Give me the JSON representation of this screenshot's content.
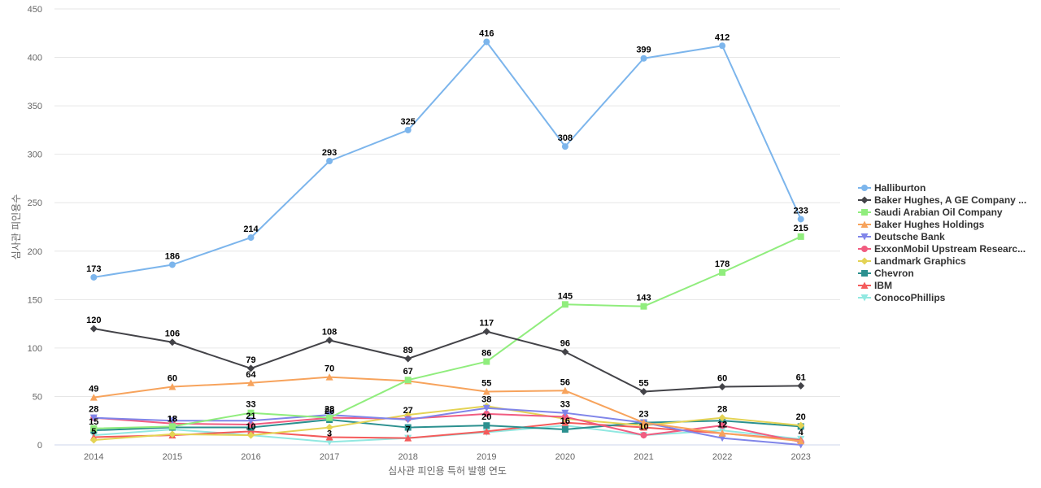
{
  "chart_data": {
    "type": "line",
    "title": "",
    "xlabel": "심사관 피인용 특허 발행 연도",
    "ylabel": "심사관 피인용수",
    "ylim": [
      0,
      450
    ],
    "yticks": [
      0,
      50,
      100,
      150,
      200,
      250,
      300,
      350,
      400,
      450
    ],
    "grid": true,
    "legend_position": "right",
    "categories": [
      "2014",
      "2015",
      "2016",
      "2017",
      "2018",
      "2019",
      "2020",
      "2021",
      "2022",
      "2023"
    ],
    "series": [
      {
        "name": "Halliburton",
        "color": "#7cb5ec",
        "marker": "circle",
        "values": [
          173,
          186,
          214,
          293,
          325,
          416,
          308,
          399,
          412,
          233
        ],
        "show_labels": true
      },
      {
        "name": "Baker Hughes, A GE Company ...",
        "color": "#434348",
        "marker": "diamond",
        "values": [
          120,
          106,
          79,
          108,
          89,
          117,
          96,
          55,
          60,
          61
        ],
        "show_labels": true
      },
      {
        "name": "Saudi Arabian Oil Company",
        "color": "#90ed7d",
        "marker": "square",
        "values": [
          17,
          19,
          33,
          28,
          67,
          86,
          145,
          143,
          178,
          215
        ],
        "show_labels": [
          false,
          false,
          true,
          true,
          true,
          true,
          true,
          true,
          true,
          true
        ]
      },
      {
        "name": "Baker Hughes Holdings",
        "color": "#f7a35c",
        "marker": "triangle",
        "values": [
          49,
          60,
          64,
          70,
          66,
          55,
          56,
          23,
          12,
          4
        ],
        "show_labels": [
          true,
          true,
          true,
          true,
          false,
          true,
          true,
          true,
          true,
          true
        ]
      },
      {
        "name": "Deutsche Bank",
        "color": "#8085e9",
        "marker": "triangle-down",
        "values": [
          28,
          25,
          25,
          31,
          26,
          38,
          33,
          23,
          7,
          0
        ],
        "show_labels": false
      },
      {
        "name": "ExxonMobil Upstream Researc...",
        "color": "#f15c80",
        "marker": "circle",
        "values": [
          28,
          22,
          21,
          28,
          27,
          32,
          29,
          10,
          20,
          3
        ],
        "show_labels": false
      },
      {
        "name": "Landmark Graphics",
        "color": "#e4d354",
        "marker": "diamond",
        "values": [
          5,
          11,
          10,
          18,
          31,
          40,
          27,
          20,
          28,
          20
        ],
        "show_labels": false
      },
      {
        "name": "Chevron",
        "color": "#2b908f",
        "marker": "square",
        "values": [
          15,
          18,
          18,
          26,
          18,
          20,
          16,
          23,
          25,
          19
        ],
        "show_labels": [
          true,
          true,
          false,
          true,
          false,
          false,
          false,
          false,
          false,
          false
        ]
      },
      {
        "name": "IBM",
        "color": "#f45b5b",
        "marker": "triangle",
        "values": [
          8,
          10,
          14,
          8,
          7,
          14,
          23,
          18,
          12,
          5
        ],
        "show_labels": false
      },
      {
        "name": "ConocoPhillips",
        "color": "#91e8e1",
        "marker": "triangle-down",
        "values": [
          10,
          16,
          10,
          3,
          7,
          13,
          20,
          10,
          15,
          6
        ],
        "show_labels": false
      }
    ],
    "extra_labels": [
      {
        "category": "2014",
        "text": "28",
        "at_value": 28
      },
      {
        "category": "2014",
        "text": "5",
        "at_value": 5
      },
      {
        "category": "2015",
        "text": "18",
        "at_value": 18
      },
      {
        "category": "2016",
        "text": "21",
        "at_value": 21
      },
      {
        "category": "2016",
        "text": "10",
        "at_value": 10
      },
      {
        "category": "2017",
        "text": "3",
        "at_value": 3
      },
      {
        "category": "2018",
        "text": "27",
        "at_value": 27
      },
      {
        "category": "2018",
        "text": "7",
        "at_value": 7
      },
      {
        "category": "2019",
        "text": "38",
        "at_value": 38
      },
      {
        "category": "2019",
        "text": "20",
        "at_value": 20
      },
      {
        "category": "2020",
        "text": "33",
        "at_value": 33
      },
      {
        "category": "2020",
        "text": "16",
        "at_value": 16
      },
      {
        "category": "2021",
        "text": "10",
        "at_value": 10
      },
      {
        "category": "2022",
        "text": "28",
        "at_value": 28
      },
      {
        "category": "2023",
        "text": "20",
        "at_value": 20
      }
    ]
  }
}
